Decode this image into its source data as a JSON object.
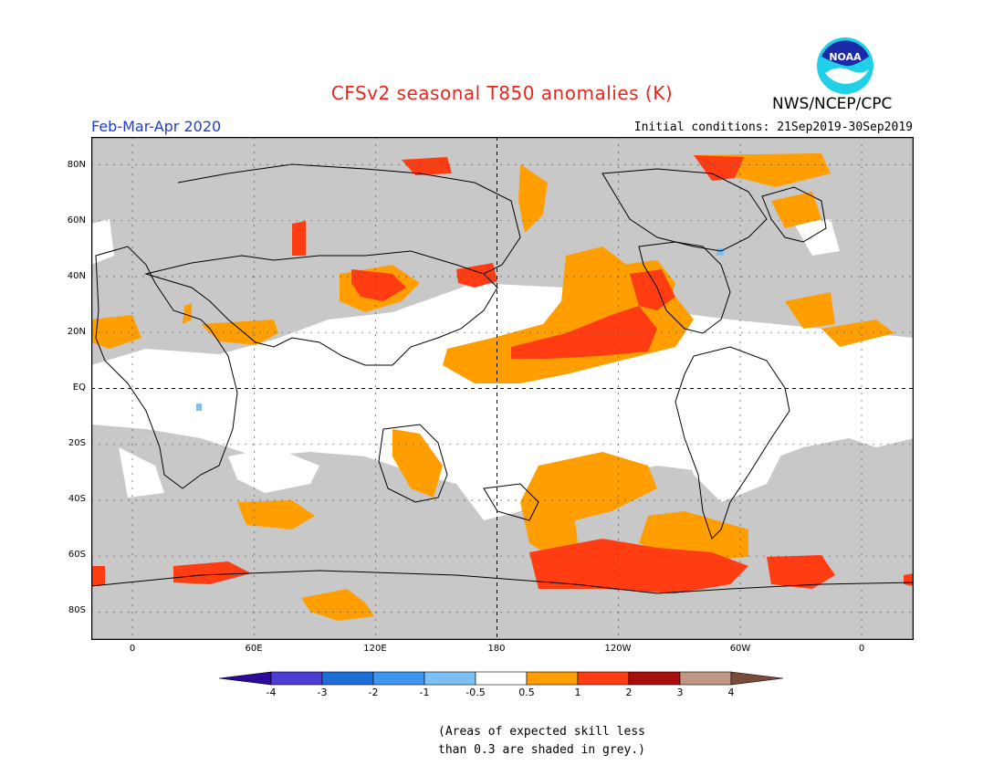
{
  "header": {
    "title": "CFSv2 seasonal T850 anomalies (K)",
    "agency": "NWS/NCEP/CPC",
    "logo_text": "NOAA",
    "season": "Feb-Mar-Apr 2020",
    "initial_conditions": "Initial conditions: 21Sep2019-30Sep2019"
  },
  "axes": {
    "lat_labels": [
      "80N",
      "60N",
      "40N",
      "20N",
      "EQ",
      "20S",
      "40S",
      "60S",
      "80S"
    ],
    "lon_labels": [
      "0",
      "60E",
      "120E",
      "180",
      "120W",
      "60W",
      "0"
    ]
  },
  "colorbar": {
    "labels": [
      "-4",
      "-3",
      "-2",
      "-1",
      "-0.5",
      "0.5",
      "1",
      "2",
      "3",
      "4"
    ],
    "colors": [
      "#2a0c9a",
      "#4a3fd0",
      "#1e6fd8",
      "#3e96ee",
      "#7cc0f5",
      "#ffffff",
      "#ff9e00",
      "#ff3c12",
      "#a80e0e",
      "#c09684",
      "#7a4a3a"
    ]
  },
  "legend_colors": {
    "land_mask": "#c8c8c8",
    "anomaly_05_1": "#ff9e00",
    "anomaly_1_2": "#ff3c12",
    "neutral": "#ffffff"
  },
  "footnote": {
    "line1": "(Areas of expected skill less",
    "line2": "than 0.3 are shaded in grey.)"
  }
}
